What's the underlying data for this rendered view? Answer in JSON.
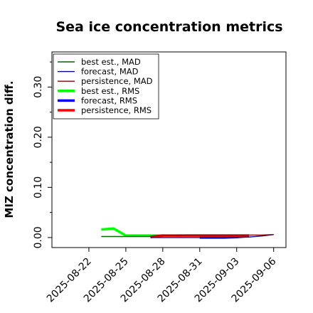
{
  "chart_data": {
    "type": "line",
    "title": "Sea ice concentration metrics",
    "xlabel": "",
    "ylabel": "MIZ concentration diff.",
    "xlim": [
      "2025-08-19",
      "2025-09-07"
    ],
    "ylim": [
      -0.02,
      0.37
    ],
    "yticks": [
      0.0,
      0.1,
      0.2,
      0.3
    ],
    "ytick_labels": [
      "0.00",
      "0.10",
      "0.20",
      "0.30"
    ],
    "xticks": [
      "2025-08-22",
      "2025-08-25",
      "2025-08-28",
      "2025-08-31",
      "2025-09-03",
      "2025-09-06"
    ],
    "xtick_labels": [
      "2025-08-22",
      "2025-08-25",
      "2025-08-28",
      "2025-08-31",
      "2025-09-03",
      "2025-09-06"
    ],
    "highlighted_xtick": "2025-08-28",
    "highlight_color": "#228b22",
    "grid": false,
    "legend_position": "upper left",
    "series": [
      {
        "name": "best est., MAD",
        "color": "#006400",
        "width": 1.6,
        "x": [
          "2025-08-23",
          "2025-08-24",
          "2025-08-25",
          "2025-08-26",
          "2025-08-27"
        ],
        "y": [
          0.002,
          0.002,
          0.002,
          0.002,
          0.002
        ]
      },
      {
        "name": "forecast,  MAD",
        "color": "#00008b",
        "width": 1.4,
        "x": [
          "2025-08-27",
          "2025-08-28",
          "2025-08-29",
          "2025-08-30",
          "2025-08-31",
          "2025-09-01",
          "2025-09-02",
          "2025-09-03",
          "2025-09-04",
          "2025-09-05",
          "2025-09-06"
        ],
        "y": [
          0.0,
          0.0,
          0.0,
          0.0,
          0.0,
          0.0,
          0.0,
          0.0,
          0.001,
          0.003,
          0.006
        ]
      },
      {
        "name": "persistence, MAD",
        "color": "#8b0000",
        "width": 1.4,
        "x": [
          "2025-08-27",
          "2025-08-28",
          "2025-08-29",
          "2025-08-30",
          "2025-08-31",
          "2025-09-01",
          "2025-09-02",
          "2025-09-03",
          "2025-09-04",
          "2025-09-05",
          "2025-09-06"
        ],
        "y": [
          0.003,
          0.004,
          0.004,
          0.005,
          0.005,
          0.005,
          0.005,
          0.005,
          0.005,
          0.005,
          0.006
        ]
      },
      {
        "name": "best est., RMS",
        "color": "#00ff00",
        "width": 3.5,
        "x": [
          "2025-08-23",
          "2025-08-24",
          "2025-08-25",
          "2025-08-26",
          "2025-08-27",
          "2025-08-28"
        ],
        "y": [
          0.016,
          0.018,
          0.004,
          0.004,
          0.004,
          0.004
        ]
      },
      {
        "name": "forecast,  RMS",
        "color": "#0000ff",
        "width": 3.5,
        "x": [
          "2025-08-31",
          "2025-09-01",
          "2025-09-02",
          "2025-09-03",
          "2025-09-04"
        ],
        "y": [
          0.0,
          0.0,
          0.0,
          0.001,
          0.003
        ]
      },
      {
        "name": "persistence, RMS",
        "color": "#ff0000",
        "width": 3.5,
        "x": [
          "2025-08-27",
          "2025-08-28",
          "2025-08-29",
          "2025-08-30",
          "2025-08-31",
          "2025-09-01",
          "2025-09-02",
          "2025-09-03",
          "2025-09-04"
        ],
        "y": [
          0.001,
          0.004,
          0.004,
          0.004,
          0.004,
          0.004,
          0.004,
          0.004,
          0.004
        ]
      }
    ]
  }
}
